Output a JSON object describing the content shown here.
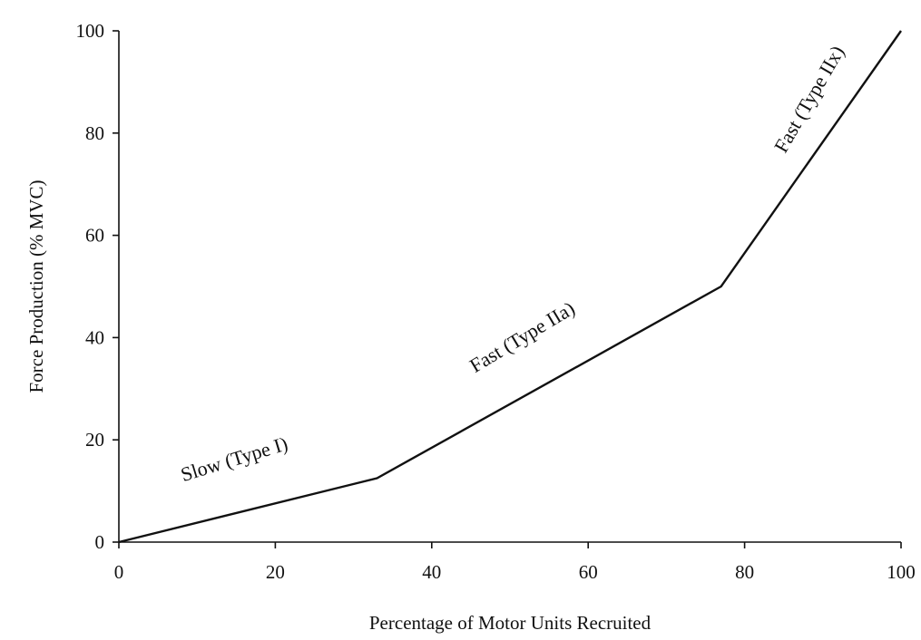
{
  "chart_data": {
    "type": "line",
    "title": "",
    "xlabel": "Percentage of Motor Units Recruited",
    "ylabel": "Force Production (% MVC)",
    "xlim": [
      0,
      100
    ],
    "ylim": [
      0,
      100
    ],
    "x_ticks": [
      0,
      20,
      40,
      60,
      80,
      100
    ],
    "y_ticks": [
      0,
      20,
      40,
      60,
      80,
      100
    ],
    "grid": false,
    "legend": "none",
    "series": [
      {
        "x": [
          0,
          33,
          77,
          100
        ],
        "y": [
          0,
          12.5,
          50,
          100
        ]
      }
    ],
    "annotations": [
      {
        "text": "Slow (Type I)",
        "x": 15,
        "y": 15,
        "angle": -17
      },
      {
        "text": "Fast (Type IIa)",
        "x": 52,
        "y": 39,
        "angle": -31
      },
      {
        "text": "Fast (Type IIx)",
        "x": 89,
        "y": 86,
        "angle": -60
      }
    ],
    "colors": {
      "line": "#111111",
      "axis": "#111111",
      "background": "#ffffff"
    }
  }
}
